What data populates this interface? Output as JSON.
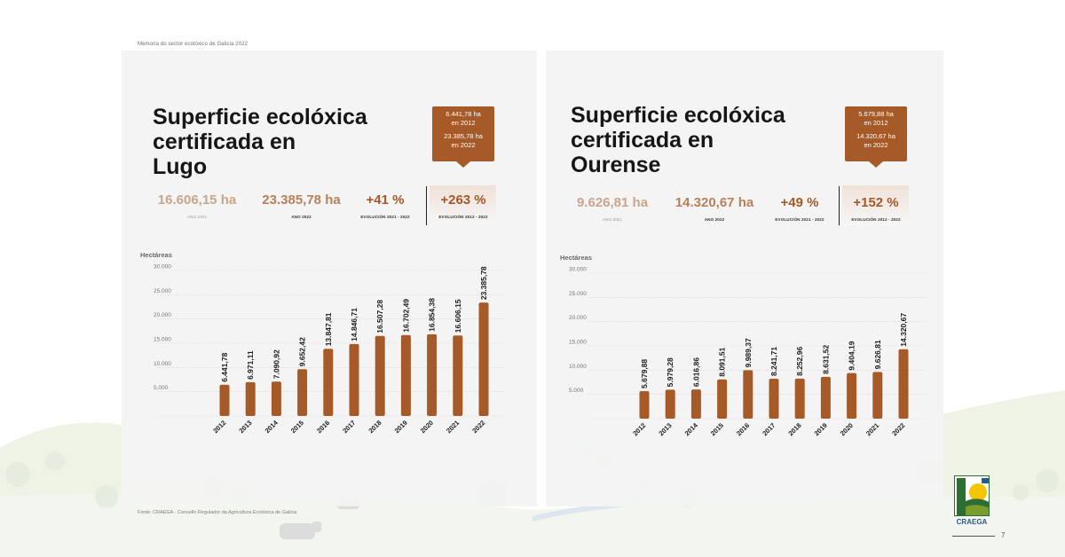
{
  "header_note": "Memoria do sector ecolóxico de Galicia 2022",
  "footer_source": "Fonte: CRAEGA - Consello Regulador da Agricultura Ecolóxica de Galicia",
  "page_number": "7",
  "logo": {
    "name": "CRAEGA"
  },
  "colors": {
    "bar": "#a55a27",
    "callout": "#a55a27",
    "stat_2021": "#c8a58c",
    "stat_2022": "#b8805c",
    "stat_evolution": "#a4582a"
  },
  "lugo": {
    "title_lines": [
      "Superficie ecolóxica",
      "certificada en",
      "Lugo"
    ],
    "stats": {
      "y2021": {
        "value": "16.606,15 ha",
        "label": "ANO 2021"
      },
      "y2022": {
        "value": "23.385,78 ha",
        "label": "ANO 2022"
      },
      "evo1": {
        "value": "+41 %",
        "label": "EVOLUCIÓN 2021 - 2022"
      },
      "evo2": {
        "value": "+263 %",
        "label": "EVOLUCIÓN 2012 - 2022"
      }
    },
    "callout": {
      "line1": "6.441,78 ha",
      "line2": "en 2012",
      "line3": "23.385,78 ha",
      "line4": "en 2022"
    }
  },
  "ourense": {
    "title_lines": [
      "Superficie ecolóxica",
      "certificada en",
      "Ourense"
    ],
    "stats": {
      "y2021": {
        "value": "9.626,81 ha",
        "label": "ANO 2021"
      },
      "y2022": {
        "value": "14.320,67 ha",
        "label": "ANO 2022"
      },
      "evo1": {
        "value": "+49 %",
        "label": "EVOLUCIÓN 2021 - 2022"
      },
      "evo2": {
        "value": "+152 %",
        "label": "EVOLUCIÓN 2012 - 2022"
      }
    },
    "callout": {
      "line1": "5.679,88 ha",
      "line2": "en 2012",
      "line3": "14.320,67 ha",
      "line4": "en 2022"
    }
  },
  "chart_data": [
    {
      "type": "bar",
      "ylabel": "Hectáreas",
      "ylim": [
        0,
        30000
      ],
      "yticks": [
        5000,
        10000,
        15000,
        20000,
        25000,
        30000
      ],
      "ytick_labels": [
        "5.000",
        "10.000",
        "15.000",
        "20.000",
        "25.000",
        "30.000"
      ],
      "grid": true,
      "categories": [
        "2012",
        "2013",
        "2014",
        "2015",
        "2016",
        "2017",
        "2018",
        "2019",
        "2020",
        "2021",
        "2022"
      ],
      "values": [
        6441.78,
        6971.11,
        7090.92,
        9652.42,
        13847.81,
        14846.71,
        16507.28,
        16702.49,
        16854.38,
        16606.15,
        23385.78
      ],
      "value_labels": [
        "6.441,78",
        "6.971,11",
        "7.090,92",
        "9.652,42",
        "13.847,81",
        "14.846,71",
        "16.507,28",
        "16.702,49",
        "16.854,38",
        "16.606,15",
        "23.385,78"
      ]
    },
    {
      "type": "bar",
      "ylabel": "Hectáreas",
      "ylim": [
        0,
        30000
      ],
      "yticks": [
        5000,
        10000,
        15000,
        20000,
        25000,
        30000
      ],
      "ytick_labels": [
        "5.000",
        "10.000",
        "15.000",
        "20.000",
        "25.000",
        "30.000"
      ],
      "grid": true,
      "categories": [
        "2012",
        "2013",
        "2014",
        "2015",
        "2016",
        "2017",
        "2018",
        "2019",
        "2020",
        "2021",
        "2022"
      ],
      "values": [
        5679.88,
        5979.28,
        6016.86,
        8091.51,
        9989.37,
        8241.71,
        8252.96,
        8631.52,
        9404.19,
        9626.81,
        14320.67
      ],
      "value_labels": [
        "5.679,88",
        "5.979,28",
        "6.016,86",
        "8.091,51",
        "9.989,37",
        "8.241,71",
        "8.252,96",
        "8.631,52",
        "9.404,19",
        "9.626,81",
        "14.320,67"
      ]
    }
  ]
}
